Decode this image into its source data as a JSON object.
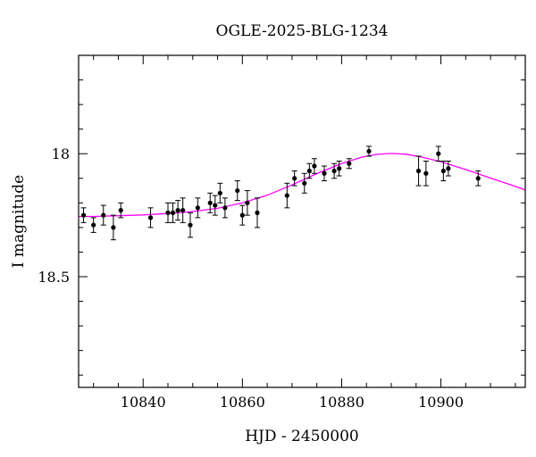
{
  "chart_data": {
    "type": "scatter",
    "title": "OGLE-2025-BLG-1234",
    "xlabel": "HJD - 2450000",
    "ylabel": "I magnitude",
    "xlim": [
      10827,
      10917
    ],
    "ylim": [
      18.95,
      17.6
    ],
    "y_inverted": true,
    "x_ticks": [
      10840,
      10860,
      10880,
      10900
    ],
    "x_tick_labels": [
      "10840",
      "10860",
      "10880",
      "10900"
    ],
    "y_ticks": [
      18,
      18.5
    ],
    "y_tick_labels": [
      "18",
      "18.5"
    ],
    "grid": false,
    "point_color": "#000000",
    "model_color": "#ff00ff",
    "series": [
      {
        "kind": "points_with_errors",
        "points": [
          {
            "x": 10828.0,
            "y": 18.25,
            "err": 0.03
          },
          {
            "x": 10830.0,
            "y": 18.29,
            "err": 0.03
          },
          {
            "x": 10832.0,
            "y": 18.25,
            "err": 0.04
          },
          {
            "x": 10834.0,
            "y": 18.3,
            "err": 0.05
          },
          {
            "x": 10835.5,
            "y": 18.23,
            "err": 0.03
          },
          {
            "x": 10841.5,
            "y": 18.26,
            "err": 0.04
          },
          {
            "x": 10845.0,
            "y": 18.24,
            "err": 0.04
          },
          {
            "x": 10846.0,
            "y": 18.24,
            "err": 0.04
          },
          {
            "x": 10847.0,
            "y": 18.23,
            "err": 0.04
          },
          {
            "x": 10848.0,
            "y": 18.23,
            "err": 0.05
          },
          {
            "x": 10849.5,
            "y": 18.29,
            "err": 0.05
          },
          {
            "x": 10851.0,
            "y": 18.22,
            "err": 0.04
          },
          {
            "x": 10853.5,
            "y": 18.2,
            "err": 0.04
          },
          {
            "x": 10854.5,
            "y": 18.21,
            "err": 0.04
          },
          {
            "x": 10855.5,
            "y": 18.16,
            "err": 0.04
          },
          {
            "x": 10856.5,
            "y": 18.22,
            "err": 0.04
          },
          {
            "x": 10859.0,
            "y": 18.15,
            "err": 0.04
          },
          {
            "x": 10860.0,
            "y": 18.25,
            "err": 0.04
          },
          {
            "x": 10861.0,
            "y": 18.2,
            "err": 0.05
          },
          {
            "x": 10863.0,
            "y": 18.24,
            "err": 0.06
          },
          {
            "x": 10869.0,
            "y": 18.17,
            "err": 0.05
          },
          {
            "x": 10870.5,
            "y": 18.1,
            "err": 0.03
          },
          {
            "x": 10872.5,
            "y": 18.12,
            "err": 0.04
          },
          {
            "x": 10873.5,
            "y": 18.07,
            "err": 0.03
          },
          {
            "x": 10874.5,
            "y": 18.05,
            "err": 0.03
          },
          {
            "x": 10876.5,
            "y": 18.08,
            "err": 0.03
          },
          {
            "x": 10878.5,
            "y": 18.07,
            "err": 0.03
          },
          {
            "x": 10879.5,
            "y": 18.06,
            "err": 0.03
          },
          {
            "x": 10881.5,
            "y": 18.04,
            "err": 0.02
          },
          {
            "x": 10885.5,
            "y": 17.99,
            "err": 0.02
          },
          {
            "x": 10895.5,
            "y": 18.07,
            "err": 0.06
          },
          {
            "x": 10897.0,
            "y": 18.08,
            "err": 0.05
          },
          {
            "x": 10899.5,
            "y": 18.0,
            "err": 0.03
          },
          {
            "x": 10900.5,
            "y": 18.07,
            "err": 0.04
          },
          {
            "x": 10901.5,
            "y": 18.06,
            "err": 0.03
          },
          {
            "x": 10907.5,
            "y": 18.1,
            "err": 0.03
          }
        ]
      },
      {
        "kind": "model_curve",
        "curve_points": [
          [
            10827,
            18.255
          ],
          [
            10830,
            18.255
          ],
          [
            10835,
            18.252
          ],
          [
            10840,
            18.249
          ],
          [
            10845,
            18.243
          ],
          [
            10850,
            18.235
          ],
          [
            10855,
            18.222
          ],
          [
            10860,
            18.2
          ],
          [
            10865,
            18.169
          ],
          [
            10870,
            18.127
          ],
          [
            10875,
            18.081
          ],
          [
            10880,
            18.04
          ],
          [
            10884,
            18.014
          ],
          [
            10887,
            18.003
          ],
          [
            10890,
            17.999
          ],
          [
            10893,
            18.002
          ],
          [
            10896,
            18.013
          ],
          [
            10900,
            18.033
          ],
          [
            10905,
            18.064
          ],
          [
            10910,
            18.099
          ],
          [
            10914,
            18.126
          ],
          [
            10917,
            18.147
          ]
        ]
      }
    ]
  }
}
